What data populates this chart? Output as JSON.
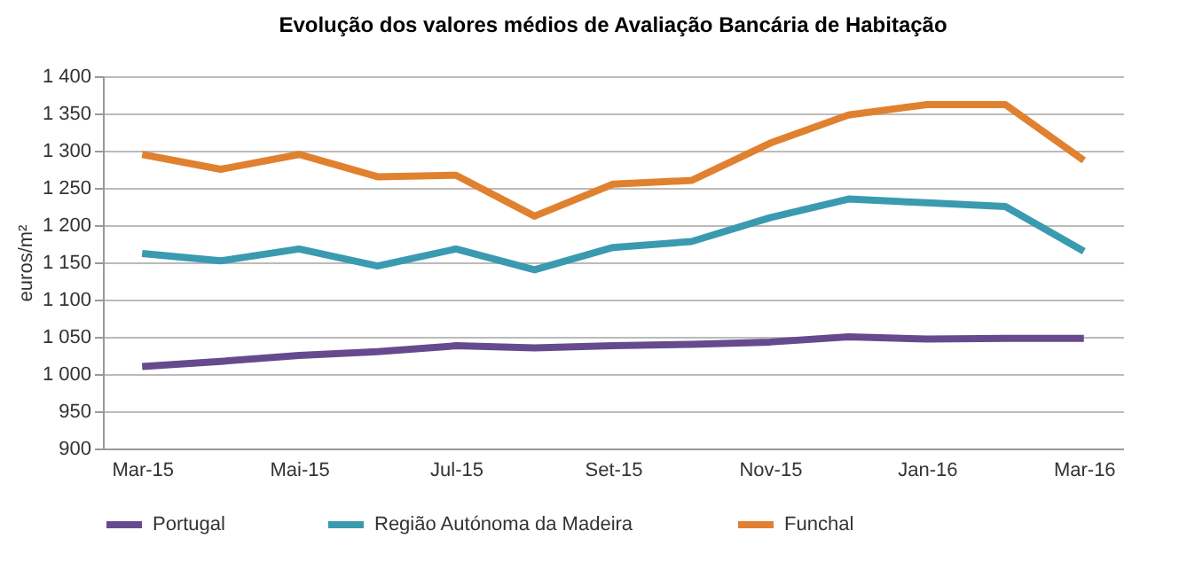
{
  "chart_data": {
    "type": "line",
    "title": "Evolução dos valores médios de Avaliação Bancária de Habitação",
    "ylabel": "euros/m²",
    "categories": [
      "Mar-15",
      null,
      "Mai-15",
      null,
      "Jul-15",
      null,
      "Set-15",
      null,
      "Nov-15",
      null,
      "Jan-16",
      null,
      "Mar-16"
    ],
    "series": [
      {
        "name": "Portugal",
        "color": "#674a8e",
        "values": [
          1010,
          1017,
          1025,
          1030,
          1038,
          1035,
          1038,
          1040,
          1043,
          1050,
          1047,
          1048,
          1048
        ]
      },
      {
        "name": "Região Autónoma da Madeira",
        "color": "#3a9ab0",
        "values": [
          1162,
          1152,
          1168,
          1145,
          1168,
          1140,
          1170,
          1178,
          1210,
          1235,
          1230,
          1225,
          1165
        ]
      },
      {
        "name": "Funchal",
        "color": "#e0812f",
        "values": [
          1295,
          1275,
          1295,
          1265,
          1267,
          1212,
          1255,
          1260,
          1310,
          1348,
          1362,
          1362,
          1287
        ]
      }
    ],
    "ylim": [
      900,
      1400
    ],
    "yticks": [
      {
        "value": 900,
        "label": "900"
      },
      {
        "value": 950,
        "label": "950"
      },
      {
        "value": 1000,
        "label": "1 000"
      },
      {
        "value": 1050,
        "label": "1 050"
      },
      {
        "value": 1100,
        "label": "1 100"
      },
      {
        "value": 1150,
        "label": "1 150"
      },
      {
        "value": 1200,
        "label": "1 200"
      },
      {
        "value": 1250,
        "label": "1 250"
      },
      {
        "value": 1300,
        "label": "1 300"
      },
      {
        "value": 1350,
        "label": "1 350"
      },
      {
        "value": 1400,
        "label": "1 400"
      }
    ],
    "grid": "y",
    "legend": "bottom",
    "marker": "none",
    "line_style": "solid"
  }
}
